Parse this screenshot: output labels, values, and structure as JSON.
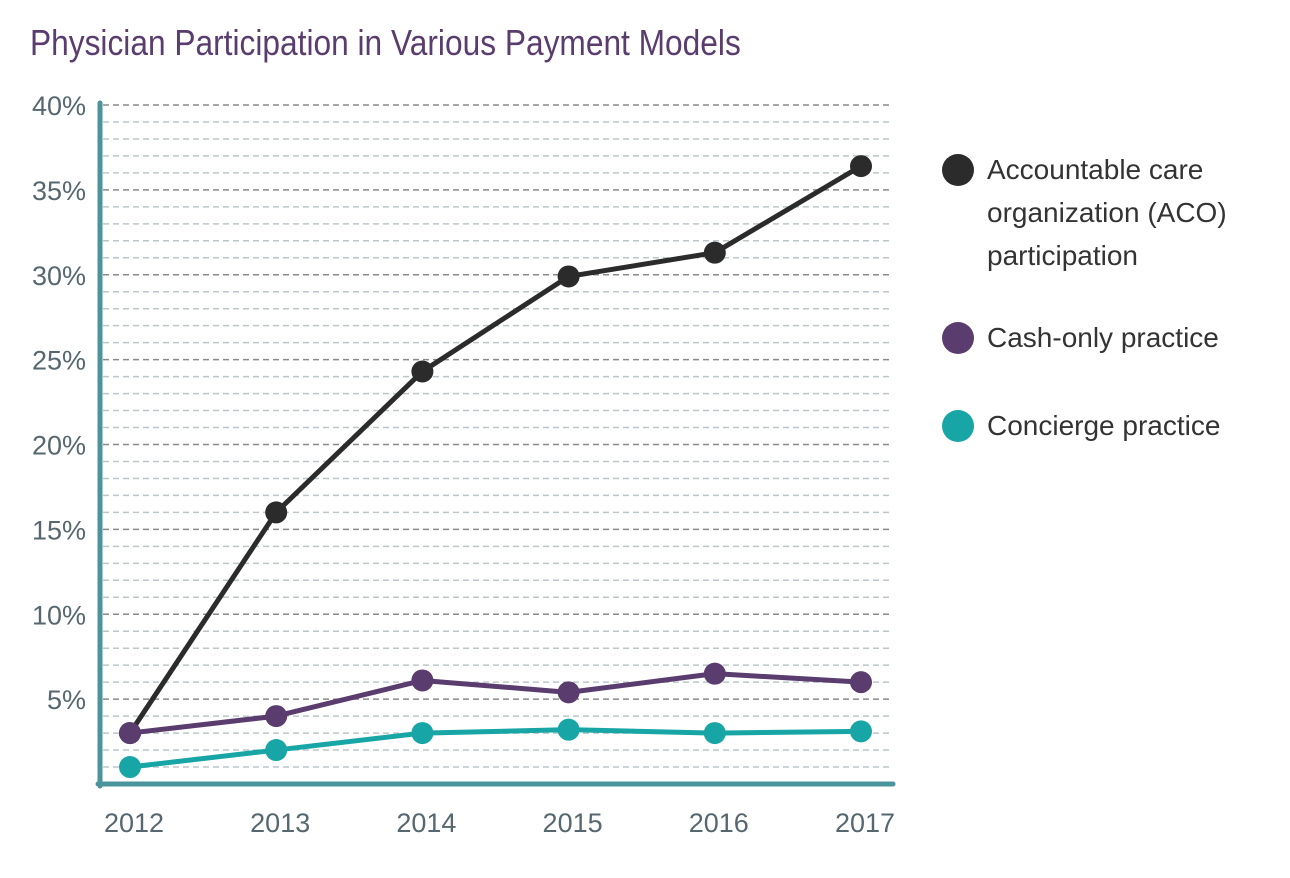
{
  "chart_data": {
    "type": "line",
    "title": "Physician Participation in Various Payment Models",
    "xlabel": "",
    "ylabel": "",
    "categories": [
      "2012",
      "2013",
      "2014",
      "2015",
      "2016",
      "2017"
    ],
    "ylim": [
      0,
      40
    ],
    "yticks": [
      "5%",
      "10%",
      "15%",
      "20%",
      "25%",
      "30%",
      "35%",
      "40%"
    ],
    "grid": true,
    "legend_position": "right",
    "series": [
      {
        "name": "Accountable care organization (ACO) participation",
        "color": "#2b2b2b",
        "values": [
          3.0,
          16.0,
          24.3,
          29.9,
          31.3,
          36.4
        ]
      },
      {
        "name": "Cash-only practice",
        "color": "#5a3d6e",
        "values": [
          3.0,
          4.0,
          6.1,
          5.4,
          6.5,
          6.0
        ]
      },
      {
        "name": "Concierge practice",
        "color": "#17a6a5",
        "values": [
          1.0,
          2.0,
          3.0,
          3.2,
          3.0,
          3.1
        ]
      }
    ]
  },
  "colors": {
    "axis": "#4a959c",
    "title": "#5a3d6e",
    "tick_text": "#56676f"
  }
}
